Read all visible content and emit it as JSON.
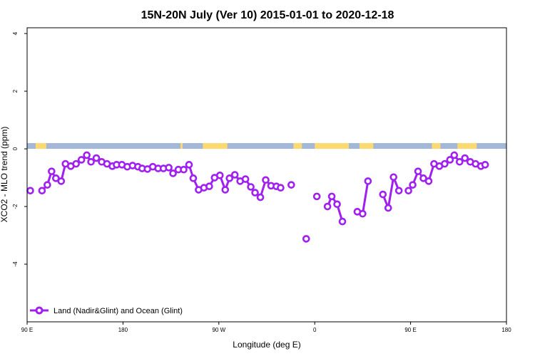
{
  "chart_data": {
    "type": "line",
    "title": "15N-20N July (Ver 10)   2015-01-01 to 2020-12-18",
    "xlabel": "Longitude (deg E)",
    "ylabel": "XCO2 - MLO trend (ppm)",
    "xlim": [
      90,
      450
    ],
    "ylim": [
      -6,
      4
    ],
    "x_ticks": [
      {
        "value": 90,
        "label": "90 E"
      },
      {
        "value": 180,
        "label": "180"
      },
      {
        "value": 270,
        "label": "90 W"
      },
      {
        "value": 360,
        "label": "0"
      },
      {
        "value": 450,
        "label": "90 E"
      },
      {
        "value": 540,
        "label": "180"
      }
    ],
    "y_ticks": [
      {
        "value": 4,
        "label": "4"
      },
      {
        "value": 2,
        "label": "2"
      },
      {
        "value": 0,
        "label": "0"
      },
      {
        "value": -2,
        "label": "-2"
      },
      {
        "value": -4,
        "label": "-4"
      }
    ],
    "x_display_range": [
      90,
      540
    ],
    "land_ocean_strip": {
      "y_range": [
        0,
        0.2
      ],
      "ocean_color": "#a3b8d8",
      "land_color": "#fcd971",
      "land_segments": [
        [
          98,
          108
        ],
        [
          234,
          236
        ],
        [
          255,
          278
        ],
        [
          340,
          348
        ],
        [
          360,
          392
        ],
        [
          402,
          415
        ],
        [
          470,
          478
        ],
        [
          494,
          512
        ]
      ]
    },
    "series": [
      {
        "name": "Land (Nadir&Glint) and Ocean (Glint)",
        "color": "#a020f0",
        "points": [
          [
            93,
            -1.45
          ],
          null,
          [
            104,
            -1.45
          ],
          [
            109,
            -1.25
          ],
          [
            113,
            -0.78
          ],
          [
            117,
            -1.02
          ],
          [
            122,
            -1.12
          ],
          [
            126,
            -0.52
          ],
          [
            131,
            -0.6
          ],
          [
            136,
            -0.52
          ],
          [
            141,
            -0.38
          ],
          [
            146,
            -0.22
          ],
          [
            150,
            -0.45
          ],
          [
            155,
            -0.32
          ],
          [
            160,
            -0.45
          ],
          [
            165,
            -0.52
          ],
          [
            170,
            -0.6
          ],
          [
            174,
            -0.55
          ],
          [
            179,
            -0.55
          ],
          [
            184,
            -0.62
          ],
          [
            189,
            -0.58
          ],
          [
            194,
            -0.62
          ],
          [
            198,
            -0.68
          ],
          [
            203,
            -0.7
          ],
          [
            208,
            -0.62
          ],
          [
            213,
            -0.68
          ],
          [
            218,
            -0.68
          ],
          [
            223,
            -0.65
          ],
          [
            227,
            -0.85
          ],
          [
            232,
            -0.72
          ],
          [
            237,
            -0.72
          ],
          [
            242,
            -0.55
          ],
          [
            246,
            -1.02
          ],
          [
            251,
            -1.42
          ],
          [
            256,
            -1.35
          ],
          [
            261,
            -1.3
          ],
          [
            266,
            -1.0
          ],
          [
            271,
            -0.92
          ],
          [
            276,
            -1.42
          ],
          [
            280,
            -1.02
          ],
          [
            285,
            -0.9
          ],
          [
            290,
            -1.12
          ],
          [
            295,
            -1.05
          ],
          [
            300,
            -1.32
          ],
          [
            304,
            -1.52
          ],
          [
            309,
            -1.68
          ],
          [
            314,
            -1.08
          ],
          [
            319,
            -1.28
          ],
          [
            324,
            -1.3
          ],
          [
            328,
            -1.35
          ],
          null,
          [
            338,
            -1.25
          ],
          null,
          [
            352,
            -3.12
          ],
          null,
          [
            362,
            -1.65
          ],
          null,
          [
            372,
            -2.0
          ],
          [
            376,
            -1.65
          ],
          [
            381,
            -1.92
          ],
          [
            386,
            -2.52
          ],
          null,
          [
            400,
            -2.18
          ],
          [
            405,
            -2.25
          ],
          [
            410,
            -1.12
          ],
          null,
          [
            424,
            -1.58
          ],
          [
            429,
            -2.05
          ],
          [
            434,
            -0.98
          ],
          [
            439,
            -1.45
          ],
          null,
          [
            448,
            -1.45
          ],
          [
            452,
            -1.25
          ],
          [
            457,
            -0.78
          ],
          [
            462,
            -1.02
          ],
          [
            467,
            -1.12
          ],
          [
            472,
            -0.52
          ],
          [
            477,
            -0.6
          ],
          [
            482,
            -0.52
          ],
          [
            487,
            -0.38
          ],
          [
            491,
            -0.22
          ],
          [
            496,
            -0.45
          ],
          [
            501,
            -0.32
          ],
          [
            506,
            -0.45
          ],
          [
            511,
            -0.52
          ],
          [
            516,
            -0.6
          ],
          [
            520,
            -0.55
          ]
        ]
      }
    ],
    "legend": {
      "position": "bottom-left",
      "entries": [
        "Land (Nadir&Glint) and Ocean (Glint)"
      ]
    },
    "grid": false
  }
}
